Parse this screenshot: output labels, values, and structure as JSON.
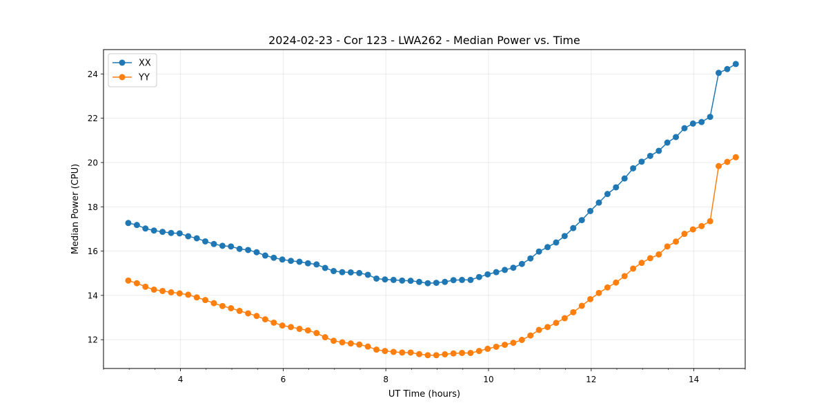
{
  "chart_data": {
    "type": "line",
    "title": "2024-02-23 - Cor 123 - LWA262 - Median Power vs. Time",
    "xlabel": "UT Time (hours)",
    "ylabel": "Median Power (CPU)",
    "xlim": [
      2.5,
      15.0
    ],
    "ylim": [
      10.7,
      25.1
    ],
    "xticks": [
      4,
      6,
      8,
      10,
      12,
      14
    ],
    "xtick_labels": [
      "4",
      "6",
      "8",
      "10",
      "12",
      "14"
    ],
    "xminor_step": 0.5,
    "yticks": [
      12,
      14,
      16,
      18,
      20,
      22,
      24
    ],
    "ytick_labels": [
      "12",
      "14",
      "16",
      "18",
      "20",
      "22",
      "24"
    ],
    "grid": true,
    "legend_position": "upper-left",
    "x": [
      2.983,
      3.15,
      3.317,
      3.483,
      3.65,
      3.817,
      3.983,
      4.15,
      4.317,
      4.483,
      4.65,
      4.817,
      4.983,
      5.15,
      5.317,
      5.483,
      5.65,
      5.817,
      5.983,
      6.15,
      6.317,
      6.483,
      6.65,
      6.817,
      6.983,
      7.15,
      7.317,
      7.483,
      7.65,
      7.817,
      7.983,
      8.15,
      8.317,
      8.483,
      8.65,
      8.817,
      8.983,
      9.15,
      9.317,
      9.483,
      9.65,
      9.817,
      9.983,
      10.15,
      10.317,
      10.483,
      10.65,
      10.817,
      10.983,
      11.15,
      11.317,
      11.483,
      11.65,
      11.817,
      11.983,
      12.15,
      12.317,
      12.483,
      12.65,
      12.817,
      12.983,
      13.15,
      13.317,
      13.483,
      13.65,
      13.817,
      13.983,
      14.15,
      14.317,
      14.483,
      14.65,
      14.817
    ],
    "series": [
      {
        "name": "XX",
        "color": "#1f77b4",
        "values": [
          17.27,
          17.18,
          17.02,
          16.93,
          16.87,
          16.82,
          16.8,
          16.67,
          16.58,
          16.44,
          16.32,
          16.24,
          16.21,
          16.1,
          16.05,
          15.95,
          15.8,
          15.7,
          15.62,
          15.56,
          15.52,
          15.45,
          15.4,
          15.24,
          15.1,
          15.05,
          15.04,
          15.01,
          14.93,
          14.76,
          14.72,
          14.7,
          14.67,
          14.66,
          14.61,
          14.55,
          14.57,
          14.61,
          14.69,
          14.7,
          14.7,
          14.83,
          14.95,
          15.05,
          15.15,
          15.25,
          15.42,
          15.67,
          15.98,
          16.18,
          16.39,
          16.68,
          17.04,
          17.4,
          17.81,
          18.19,
          18.58,
          18.88,
          19.28,
          19.74,
          20.04,
          20.3,
          20.53,
          20.9,
          21.15,
          21.55,
          21.76,
          21.83,
          22.06,
          24.05,
          24.22,
          24.45
        ]
      },
      {
        "name": "YY",
        "color": "#ff7f0e",
        "values": [
          14.67,
          14.55,
          14.39,
          14.26,
          14.2,
          14.14,
          14.09,
          14.03,
          13.91,
          13.79,
          13.65,
          13.52,
          13.42,
          13.3,
          13.19,
          13.07,
          12.92,
          12.77,
          12.64,
          12.57,
          12.49,
          12.42,
          12.3,
          12.11,
          11.95,
          11.88,
          11.83,
          11.78,
          11.69,
          11.55,
          11.49,
          11.45,
          11.42,
          11.42,
          11.35,
          11.3,
          11.3,
          11.34,
          11.38,
          11.4,
          11.4,
          11.49,
          11.59,
          11.68,
          11.77,
          11.86,
          11.99,
          12.19,
          12.44,
          12.57,
          12.76,
          12.97,
          13.24,
          13.53,
          13.83,
          14.11,
          14.36,
          14.58,
          14.87,
          15.21,
          15.47,
          15.68,
          15.85,
          16.21,
          16.43,
          16.78,
          16.98,
          17.13,
          17.35,
          19.84,
          20.03,
          20.24
        ]
      }
    ]
  }
}
